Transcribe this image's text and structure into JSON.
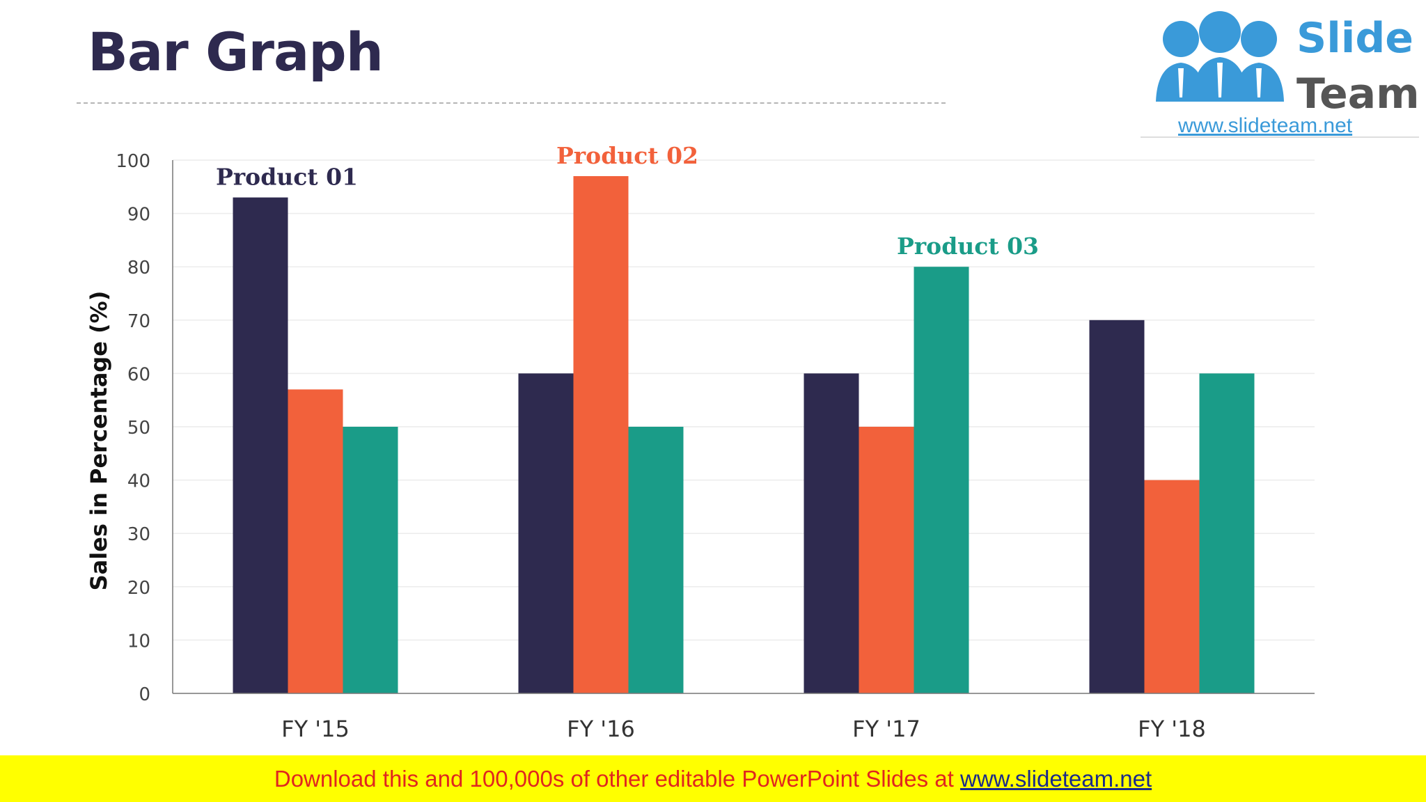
{
  "slide": {
    "title": "Bar Graph"
  },
  "logo": {
    "line1": "Slide",
    "line2": "Team",
    "url": "www.slideteam.net"
  },
  "footer": {
    "text": "Download this and 100,000s of other editable PowerPoint Slides at ",
    "link": "www.slideteam.net"
  },
  "colors": {
    "product_01": "#2e2a4f",
    "product_02": "#f2613b",
    "product_03": "#1a9c88",
    "title": "#2e2a4f",
    "footer_bg": "#ffff00",
    "footer_text": "#e0261f"
  },
  "chart_data": {
    "type": "bar",
    "title": "",
    "xlabel": "",
    "ylabel": "Sales in Percentage (%)",
    "categories": [
      "FY '15",
      "FY '16",
      "FY '17",
      "FY '18"
    ],
    "ylim": [
      0,
      100
    ],
    "yticks": [
      0,
      10,
      20,
      30,
      40,
      50,
      60,
      70,
      80,
      90,
      100
    ],
    "grid": true,
    "legend": "none",
    "series": [
      {
        "name": "Product 01",
        "color": "#2e2a4f",
        "values": [
          93,
          60,
          60,
          70
        ]
      },
      {
        "name": "Product 02",
        "color": "#f2613b",
        "values": [
          57,
          97,
          50,
          40
        ]
      },
      {
        "name": "Product 03",
        "color": "#1a9c88",
        "values": [
          50,
          50,
          80,
          60
        ]
      }
    ],
    "annotations": [
      {
        "text": "Product 01",
        "series": 0,
        "category": 0
      },
      {
        "text": "Product 02",
        "series": 1,
        "category": 1
      },
      {
        "text": "Product 03",
        "series": 2,
        "category": 2
      }
    ]
  }
}
